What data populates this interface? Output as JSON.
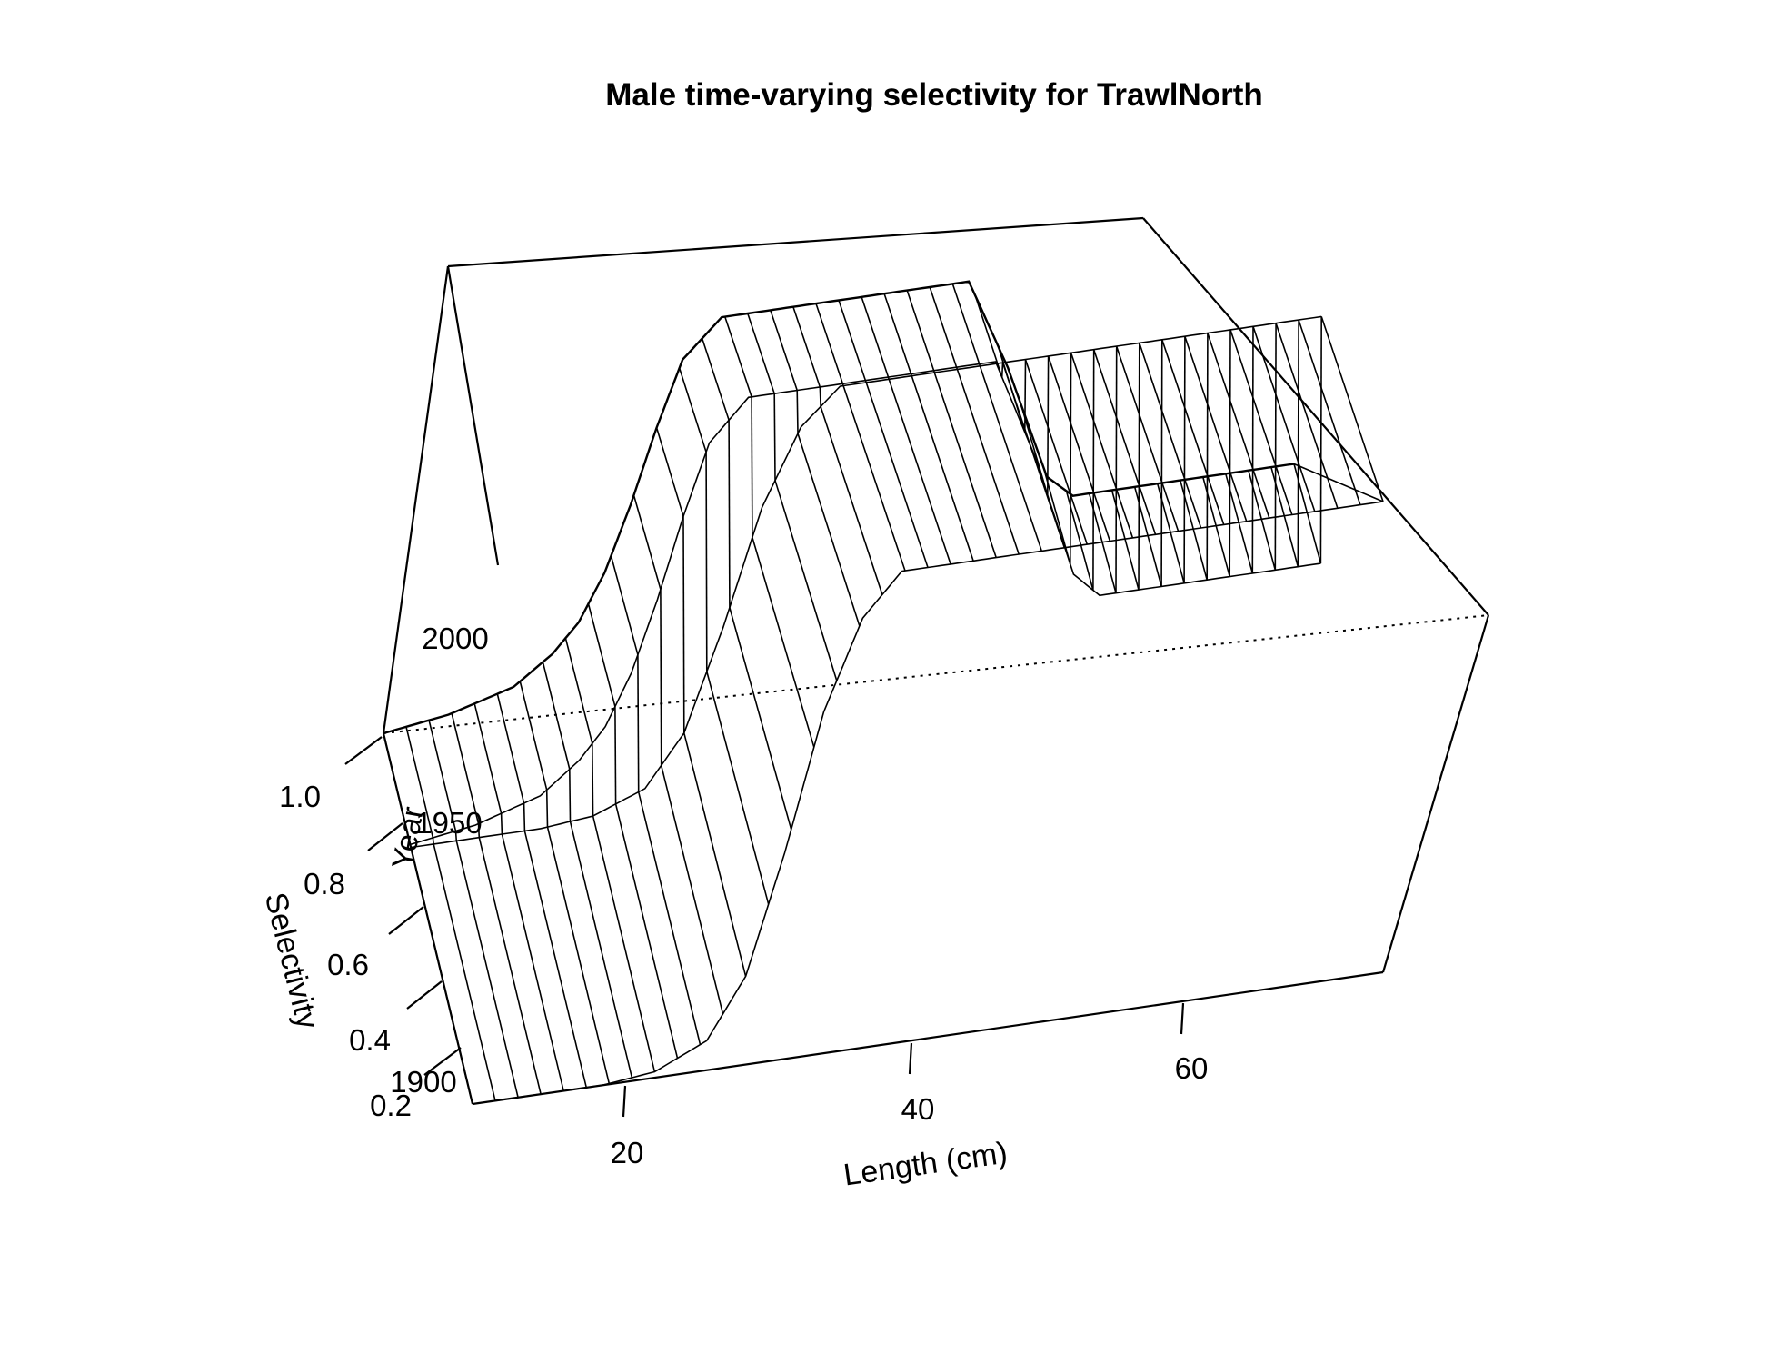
{
  "chart_data": {
    "type": "surface",
    "title": "Male time-varying selectivity for TrawlNorth",
    "xlabel": "Length (cm)",
    "ylabel": "Year",
    "zlabel": "Selectivity",
    "x_ticks": [
      "20",
      "40",
      "60"
    ],
    "y_ticks": [
      "1900",
      "1950",
      "2000"
    ],
    "z_ticks": [
      "0.2",
      "0.4",
      "0.6",
      "0.8",
      "1.0"
    ],
    "xlim": [
      10,
      80
    ],
    "ylim": [
      1890,
      2020
    ],
    "zlim": [
      0.2,
      1.0
    ],
    "selectivity_profiles": [
      {
        "years": [
          1890,
          1980
        ],
        "length": [
          10,
          20,
          24,
          28,
          31,
          34,
          37,
          40,
          43,
          46,
          58,
          80
        ],
        "selectivity": [
          0.2,
          0.2,
          0.21,
          0.25,
          0.35,
          0.55,
          0.78,
          0.93,
          1.0,
          1.0,
          1.0,
          1.0
        ]
      },
      {
        "years": [
          1981,
          2020
        ],
        "length": [
          10,
          15,
          20,
          23,
          25,
          27,
          29,
          31,
          33,
          36,
          46,
          55,
          58,
          61,
          63,
          80
        ],
        "selectivity": [
          0.2,
          0.22,
          0.26,
          0.32,
          0.38,
          0.48,
          0.62,
          0.78,
          0.92,
          1.0,
          1.0,
          1.0,
          0.8,
          0.55,
          0.5,
          0.5
        ]
      }
    ]
  }
}
